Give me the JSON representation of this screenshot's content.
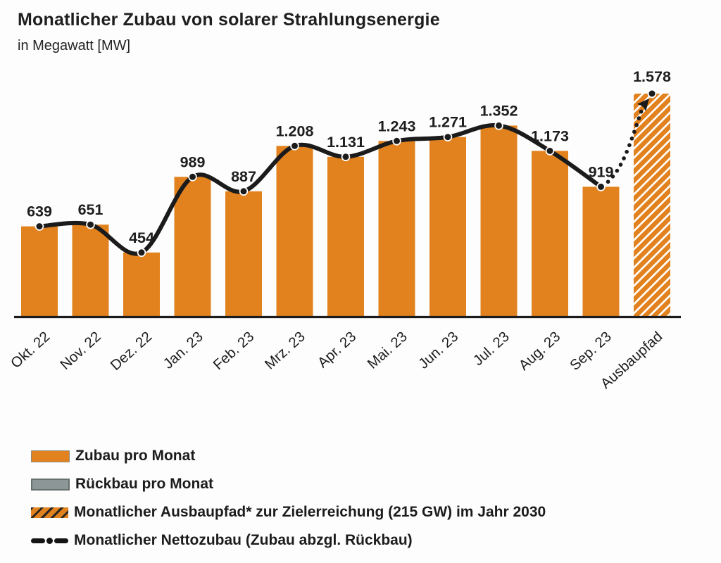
{
  "header": {
    "title": "Monatlicher Zubau von solarer Strahlungsenergie",
    "subtitle": "in Megawatt [MW]"
  },
  "colors": {
    "bar_orange": "#e2821e",
    "ruckbau_gray": "#8c9696",
    "line_black": "#1b1b1b",
    "axis": "#1c1c1c",
    "text": "#1d1d1d"
  },
  "chart_data": {
    "type": "bar",
    "title": "Monatlicher Zubau von solarer Strahlungsenergie",
    "subtitle": "in Megawatt [MW]",
    "ylabel": "MW",
    "categories": [
      "Okt. 22",
      "Nov. 22",
      "Dez. 22",
      "Jan. 23",
      "Feb. 23",
      "Mrz. 23",
      "Apr. 23",
      "Mai. 23",
      "Jun. 23",
      "Jul. 23",
      "Aug. 23",
      "Sep. 23",
      "Ausbaupfad"
    ],
    "values": [
      639,
      651,
      454,
      989,
      887,
      1208,
      1131,
      1243,
      1271,
      1352,
      1173,
      919,
      1578
    ],
    "value_labels": [
      "639",
      "651",
      "454",
      "989",
      "887",
      "1.208",
      "1.131",
      "1.243",
      "1.271",
      "1.352",
      "1.173",
      "919",
      "1.578"
    ],
    "hatched_index": 12,
    "series": [
      {
        "name": "Zubau pro Monat",
        "type": "bar",
        "style": "solid",
        "values": [
          639,
          651,
          454,
          989,
          887,
          1208,
          1131,
          1243,
          1271,
          1352,
          1173,
          919
        ]
      },
      {
        "name": "Rückbau pro Monat",
        "type": "bar",
        "style": "solid-gray",
        "values": []
      },
      {
        "name": "Monatlicher Ausbaupfad* zur Zielerreichung (215 GW) im Jahr 2030",
        "type": "bar",
        "style": "hatched",
        "values": [
          1578
        ]
      },
      {
        "name": "Monatlicher Nettozubau (Zubau abzgl. Rückbau)",
        "type": "line",
        "style": "solid-then-dotted-projection",
        "values": [
          639,
          651,
          454,
          989,
          887,
          1208,
          1131,
          1243,
          1271,
          1352,
          1173,
          919,
          1578
        ]
      }
    ],
    "ylim": [
      0,
      1650
    ],
    "grid": false,
    "legend_position": "bottom"
  },
  "legend": {
    "items": [
      {
        "label": "Zubau pro Monat",
        "swatch": "solid-orange"
      },
      {
        "label": "Rückbau pro Monat",
        "swatch": "solid-gray"
      },
      {
        "label": "Monatlicher Ausbaupfad* zur Zielerreichung (215 GW) im Jahr 2030",
        "swatch": "hatched-orange"
      },
      {
        "label": "Monatlicher Nettozubau (Zubau abzgl. Rückbau)",
        "swatch": "line-dash-dot"
      }
    ]
  }
}
